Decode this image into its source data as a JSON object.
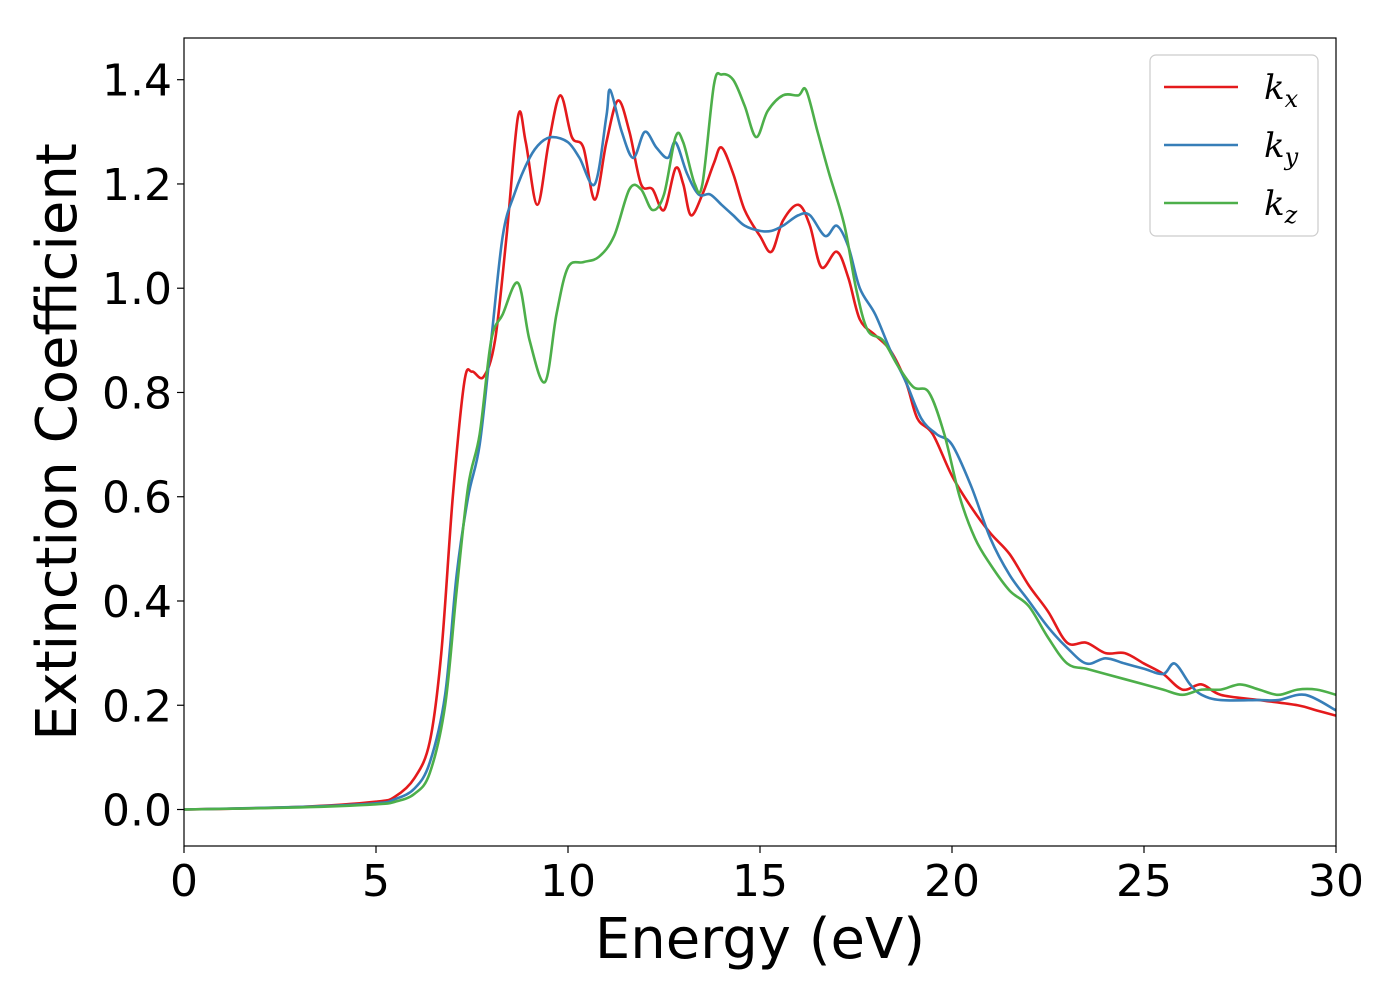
{
  "chart_data": {
    "type": "line",
    "xlabel": "Energy (eV)",
    "ylabel": "Extinction Coefficient",
    "xlim": [
      0,
      30
    ],
    "ylim": [
      -0.07,
      1.48
    ],
    "xticks": [
      0,
      5,
      10,
      15,
      20,
      25,
      30
    ],
    "yticks": [
      0.0,
      0.2,
      0.4,
      0.6,
      0.8,
      1.0,
      1.2,
      1.4
    ],
    "xtick_labels": [
      "0",
      "5",
      "10",
      "15",
      "20",
      "25",
      "30"
    ],
    "ytick_labels": [
      "0.0",
      "0.2",
      "0.4",
      "0.6",
      "0.8",
      "1.0",
      "1.2",
      "1.4"
    ],
    "grid": false,
    "legend_position": "top-right",
    "series": [
      {
        "name": "k_x",
        "label_main": "k",
        "label_sub": "x",
        "color": "#e41a1c",
        "points": [
          [
            0,
            0
          ],
          [
            3,
            0.005
          ],
          [
            5,
            0.015
          ],
          [
            5.5,
            0.025
          ],
          [
            6,
            0.06
          ],
          [
            6.4,
            0.13
          ],
          [
            6.7,
            0.3
          ],
          [
            7.0,
            0.6
          ],
          [
            7.3,
            0.82
          ],
          [
            7.5,
            0.84
          ],
          [
            7.8,
            0.83
          ],
          [
            8.1,
            0.9
          ],
          [
            8.4,
            1.1
          ],
          [
            8.7,
            1.33
          ],
          [
            8.9,
            1.28
          ],
          [
            9.2,
            1.16
          ],
          [
            9.5,
            1.28
          ],
          [
            9.8,
            1.37
          ],
          [
            10.1,
            1.29
          ],
          [
            10.4,
            1.27
          ],
          [
            10.7,
            1.17
          ],
          [
            11.0,
            1.28
          ],
          [
            11.3,
            1.36
          ],
          [
            11.6,
            1.3
          ],
          [
            11.9,
            1.2
          ],
          [
            12.2,
            1.19
          ],
          [
            12.5,
            1.15
          ],
          [
            12.8,
            1.23
          ],
          [
            13.0,
            1.2
          ],
          [
            13.2,
            1.14
          ],
          [
            13.5,
            1.18
          ],
          [
            13.8,
            1.24
          ],
          [
            14.0,
            1.27
          ],
          [
            14.3,
            1.22
          ],
          [
            14.6,
            1.15
          ],
          [
            15.0,
            1.1
          ],
          [
            15.3,
            1.07
          ],
          [
            15.6,
            1.13
          ],
          [
            16.0,
            1.16
          ],
          [
            16.3,
            1.12
          ],
          [
            16.6,
            1.04
          ],
          [
            17.0,
            1.07
          ],
          [
            17.3,
            1.02
          ],
          [
            17.6,
            0.94
          ],
          [
            18.0,
            0.91
          ],
          [
            18.4,
            0.88
          ],
          [
            18.8,
            0.82
          ],
          [
            19.1,
            0.75
          ],
          [
            19.5,
            0.72
          ],
          [
            20.0,
            0.64
          ],
          [
            20.5,
            0.58
          ],
          [
            21.0,
            0.53
          ],
          [
            21.5,
            0.49
          ],
          [
            22.0,
            0.43
          ],
          [
            22.5,
            0.38
          ],
          [
            23.0,
            0.32
          ],
          [
            23.5,
            0.32
          ],
          [
            24.0,
            0.3
          ],
          [
            24.5,
            0.3
          ],
          [
            25.0,
            0.28
          ],
          [
            25.5,
            0.26
          ],
          [
            26.0,
            0.23
          ],
          [
            26.5,
            0.24
          ],
          [
            27.0,
            0.22
          ],
          [
            28.0,
            0.21
          ],
          [
            29.0,
            0.2
          ],
          [
            29.5,
            0.19
          ],
          [
            30,
            0.18
          ]
        ]
      },
      {
        "name": "k_y",
        "label_main": "k",
        "label_sub": "y",
        "color": "#377eb8",
        "points": [
          [
            0,
            0
          ],
          [
            3,
            0.005
          ],
          [
            5,
            0.012
          ],
          [
            5.5,
            0.02
          ],
          [
            6,
            0.04
          ],
          [
            6.4,
            0.09
          ],
          [
            6.8,
            0.22
          ],
          [
            7.1,
            0.45
          ],
          [
            7.4,
            0.6
          ],
          [
            7.7,
            0.7
          ],
          [
            8.0,
            0.9
          ],
          [
            8.3,
            1.1
          ],
          [
            8.6,
            1.18
          ],
          [
            9.0,
            1.25
          ],
          [
            9.3,
            1.28
          ],
          [
            9.6,
            1.29
          ],
          [
            10.0,
            1.28
          ],
          [
            10.3,
            1.25
          ],
          [
            10.7,
            1.2
          ],
          [
            11.0,
            1.33
          ],
          [
            11.1,
            1.38
          ],
          [
            11.4,
            1.3
          ],
          [
            11.7,
            1.25
          ],
          [
            12.0,
            1.3
          ],
          [
            12.3,
            1.27
          ],
          [
            12.6,
            1.25
          ],
          [
            12.8,
            1.28
          ],
          [
            13.1,
            1.22
          ],
          [
            13.4,
            1.18
          ],
          [
            13.7,
            1.18
          ],
          [
            14.0,
            1.16
          ],
          [
            14.3,
            1.14
          ],
          [
            14.6,
            1.12
          ],
          [
            15.0,
            1.11
          ],
          [
            15.3,
            1.11
          ],
          [
            15.6,
            1.12
          ],
          [
            16.0,
            1.14
          ],
          [
            16.3,
            1.14
          ],
          [
            16.7,
            1.1
          ],
          [
            17.0,
            1.12
          ],
          [
            17.3,
            1.08
          ],
          [
            17.6,
            1.0
          ],
          [
            18.0,
            0.95
          ],
          [
            18.4,
            0.88
          ],
          [
            18.8,
            0.82
          ],
          [
            19.2,
            0.75
          ],
          [
            19.6,
            0.72
          ],
          [
            20.0,
            0.7
          ],
          [
            20.5,
            0.62
          ],
          [
            21.0,
            0.52
          ],
          [
            21.5,
            0.45
          ],
          [
            22.0,
            0.4
          ],
          [
            22.5,
            0.35
          ],
          [
            23.0,
            0.31
          ],
          [
            23.5,
            0.28
          ],
          [
            24.0,
            0.29
          ],
          [
            24.5,
            0.28
          ],
          [
            25.0,
            0.27
          ],
          [
            25.5,
            0.26
          ],
          [
            25.8,
            0.28
          ],
          [
            26.2,
            0.24
          ],
          [
            26.5,
            0.22
          ],
          [
            27.0,
            0.21
          ],
          [
            28.0,
            0.21
          ],
          [
            28.5,
            0.21
          ],
          [
            29.2,
            0.22
          ],
          [
            30,
            0.19
          ]
        ]
      },
      {
        "name": "k_z",
        "label_main": "k",
        "label_sub": "z",
        "color": "#4daf4a",
        "points": [
          [
            0,
            0
          ],
          [
            3,
            0.004
          ],
          [
            5,
            0.01
          ],
          [
            5.5,
            0.015
          ],
          [
            6,
            0.03
          ],
          [
            6.4,
            0.07
          ],
          [
            6.8,
            0.2
          ],
          [
            7.1,
            0.42
          ],
          [
            7.4,
            0.62
          ],
          [
            7.7,
            0.72
          ],
          [
            8.0,
            0.9
          ],
          [
            8.3,
            0.95
          ],
          [
            8.7,
            1.01
          ],
          [
            9.0,
            0.9
          ],
          [
            9.4,
            0.82
          ],
          [
            9.7,
            0.95
          ],
          [
            10.0,
            1.04
          ],
          [
            10.4,
            1.05
          ],
          [
            10.8,
            1.06
          ],
          [
            11.2,
            1.1
          ],
          [
            11.6,
            1.19
          ],
          [
            11.9,
            1.19
          ],
          [
            12.2,
            1.15
          ],
          [
            12.5,
            1.18
          ],
          [
            12.8,
            1.29
          ],
          [
            13.0,
            1.28
          ],
          [
            13.3,
            1.2
          ],
          [
            13.5,
            1.2
          ],
          [
            13.8,
            1.39
          ],
          [
            14.0,
            1.41
          ],
          [
            14.3,
            1.4
          ],
          [
            14.6,
            1.35
          ],
          [
            14.9,
            1.29
          ],
          [
            15.2,
            1.34
          ],
          [
            15.6,
            1.37
          ],
          [
            16.0,
            1.37
          ],
          [
            16.2,
            1.38
          ],
          [
            16.5,
            1.3
          ],
          [
            16.8,
            1.22
          ],
          [
            17.2,
            1.12
          ],
          [
            17.5,
            1.0
          ],
          [
            17.8,
            0.92
          ],
          [
            18.2,
            0.9
          ],
          [
            18.6,
            0.85
          ],
          [
            19.0,
            0.81
          ],
          [
            19.4,
            0.8
          ],
          [
            19.8,
            0.72
          ],
          [
            20.2,
            0.6
          ],
          [
            20.6,
            0.52
          ],
          [
            21.0,
            0.47
          ],
          [
            21.5,
            0.42
          ],
          [
            22.0,
            0.39
          ],
          [
            22.5,
            0.33
          ],
          [
            23.0,
            0.28
          ],
          [
            23.5,
            0.27
          ],
          [
            24.0,
            0.26
          ],
          [
            24.5,
            0.25
          ],
          [
            25.0,
            0.24
          ],
          [
            25.5,
            0.23
          ],
          [
            26.0,
            0.22
          ],
          [
            26.5,
            0.23
          ],
          [
            27.0,
            0.23
          ],
          [
            27.5,
            0.24
          ],
          [
            28.0,
            0.23
          ],
          [
            28.5,
            0.22
          ],
          [
            29.0,
            0.23
          ],
          [
            29.5,
            0.23
          ],
          [
            30,
            0.22
          ]
        ]
      }
    ]
  }
}
